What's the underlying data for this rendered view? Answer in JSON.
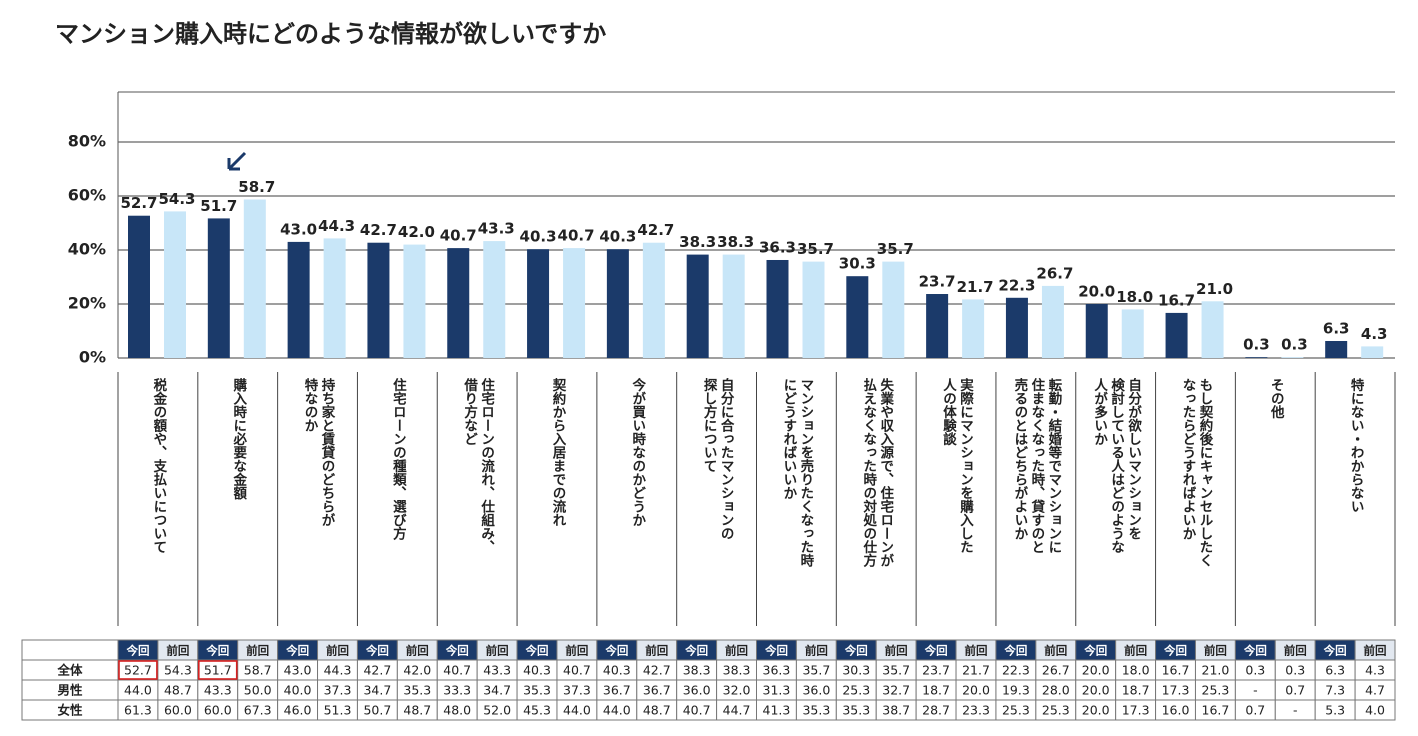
{
  "chart_data": {
    "type": "bar",
    "title": "マンション購入時にどのような情報が欲しいですか",
    "categories": [
      "税金の額や、支払いについて",
      "購入時に必要な金額",
      "持ち家と賃貸のどちらが\n特なのか",
      "住宅ローンの種類、選び方",
      "住宅ローンの流れ、仕組み、\n借り方など",
      "契約から入居までの流れ",
      "今が買い時なのかどうか",
      "自分に合ったマンションの\n探し方について",
      "マンションを売りたくなった時\nにどうすればいいか",
      "失業や収入源で、住宅ローンが\n払えなくなった時の対処の仕方",
      "実際にマンションを購入した\n人の体験談",
      "転勤・結婚等でマンションに\n住まなくなった時、貸すのと\n売るのとはどちらがよいか",
      "自分が欲しいマンションを\n検討している人はどのような\n人が多いか",
      "もし契約後にキャンセルしたく\nなったらどうすればよいか",
      "その他",
      "特にない・わからない"
    ],
    "series": [
      {
        "name": "今回",
        "color": "#1b3a6a",
        "values": [
          52.7,
          51.7,
          43.0,
          42.7,
          40.7,
          40.3,
          40.3,
          38.3,
          36.3,
          30.3,
          23.7,
          22.3,
          20.0,
          16.7,
          0.3,
          6.3
        ],
        "value_labels": [
          "52.7",
          "51.7",
          "43.0",
          "42.7",
          "40.7",
          "40.3",
          "40.3",
          "38.3",
          "36.3",
          "30.3",
          "23.7",
          "22.3",
          "20.0",
          "16.7",
          "0.3",
          "6.3"
        ]
      },
      {
        "name": "前回",
        "color": "#c8e6f8",
        "values": [
          54.3,
          58.7,
          44.3,
          42.0,
          43.3,
          40.7,
          42.7,
          38.3,
          35.7,
          35.7,
          21.7,
          26.7,
          18.0,
          21.0,
          0.3,
          4.3
        ],
        "value_labels": [
          "54.3",
          "58.7",
          "44.3",
          "42.0",
          "43.3",
          "40.7",
          "42.7",
          "38.3",
          "35.7",
          "35.7",
          "21.7",
          "26.7",
          "18.0",
          "21.0",
          "0.3",
          "4.3"
        ]
      }
    ],
    "ylim": [
      0,
      80
    ],
    "yticks": [
      {
        "value": 0,
        "label": "0%"
      },
      {
        "value": 20,
        "label": "20%"
      },
      {
        "value": 40,
        "label": "40%"
      },
      {
        "value": 60,
        "label": "60%"
      },
      {
        "value": 80,
        "label": "80%"
      }
    ],
    "grid": true
  },
  "table": {
    "rows": [
      {
        "label": "全体"
      },
      {
        "label": "男性",
        "cells": [
          "44.0",
          "48.7",
          "43.3",
          "50.0",
          "40.0",
          "37.3",
          "34.7",
          "35.3",
          "33.3",
          "34.7",
          "35.3",
          "37.3",
          "36.7",
          "36.7",
          "36.0",
          "32.0",
          "31.3",
          "36.0",
          "25.3",
          "32.7",
          "18.7",
          "20.0",
          "19.3",
          "28.0",
          "20.0",
          "18.7",
          "17.3",
          "25.3",
          "-",
          "0.7",
          "7.3",
          "4.7"
        ]
      },
      {
        "label": "女性",
        "cells": [
          "61.3",
          "60.0",
          "60.0",
          "67.3",
          "46.0",
          "51.3",
          "50.7",
          "48.7",
          "48.0",
          "52.0",
          "45.3",
          "44.0",
          "44.0",
          "48.7",
          "40.7",
          "44.7",
          "41.3",
          "35.3",
          "35.3",
          "38.7",
          "28.7",
          "23.3",
          "25.3",
          "25.3",
          "20.0",
          "17.3",
          "16.0",
          "16.7",
          "0.7",
          "-",
          "5.3",
          "4.0"
        ]
      }
    ]
  }
}
